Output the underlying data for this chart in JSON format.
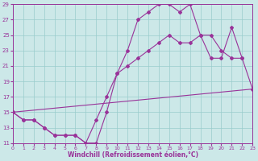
{
  "xlabel": "Windchill (Refroidissement éolien,°C)",
  "bg_color": "#cce8e8",
  "grid_color": "#99cccc",
  "line_color": "#993399",
  "xlim": [
    0,
    23
  ],
  "ylim": [
    11,
    29
  ],
  "yticks": [
    11,
    13,
    15,
    17,
    19,
    21,
    23,
    25,
    27,
    29
  ],
  "xticks": [
    0,
    1,
    2,
    3,
    4,
    5,
    6,
    7,
    8,
    9,
    10,
    11,
    12,
    13,
    14,
    15,
    16,
    17,
    18,
    19,
    20,
    21,
    22,
    23
  ],
  "line1_x": [
    0,
    1,
    2,
    3,
    4,
    5,
    6,
    7,
    8,
    9,
    10,
    11,
    12,
    13,
    14,
    15,
    16,
    17,
    18,
    19,
    20,
    21,
    22,
    23
  ],
  "line1_y": [
    15,
    14,
    14,
    13,
    12,
    12,
    12,
    11,
    11,
    15,
    20,
    23,
    27,
    28,
    29,
    29,
    28,
    29,
    25,
    22,
    22,
    26,
    22,
    18
  ],
  "line2_x": [
    0,
    1,
    2,
    3,
    4,
    5,
    6,
    7,
    8,
    9,
    10,
    11,
    12,
    13,
    14,
    15,
    16,
    17,
    18,
    19,
    20,
    21,
    22
  ],
  "line2_y": [
    15,
    14,
    14,
    13,
    12,
    12,
    12,
    11,
    14,
    17,
    20,
    21,
    22,
    23,
    24,
    25,
    24,
    24,
    25,
    25,
    23,
    22,
    22
  ],
  "line3_x": [
    0,
    23
  ],
  "line3_y": [
    15,
    18
  ],
  "figsize": [
    3.2,
    2.0
  ],
  "dpi": 100
}
